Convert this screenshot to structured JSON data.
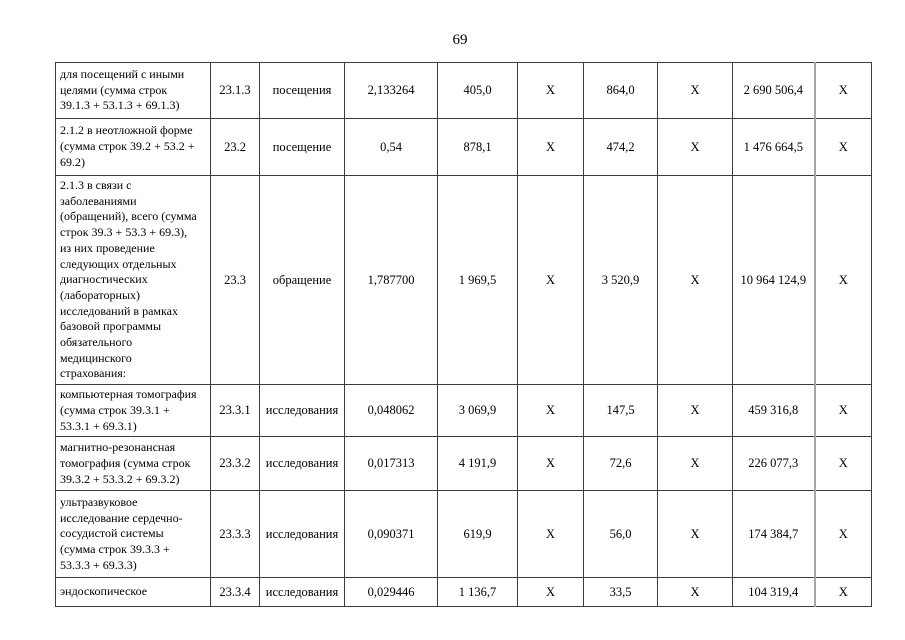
{
  "page": {
    "number": "69"
  },
  "table": {
    "cell_names": [
      "indicator-name-cell",
      "line-code-cell",
      "unit-cell",
      "volume-per-capita-cell",
      "cost-per-unit-cell",
      "x-cell",
      "cost-per-capita-cell",
      "x-cell",
      "total-cost-cell",
      "x-cell"
    ],
    "rows": [
      {
        "cells": [
          "для посещений с иными\nцелями (сумма строк\n39.1.3 + 53.1.3 + 69.1.3)",
          "23.1.3",
          "посещения",
          "2,133264",
          "405,0",
          "X",
          "864,0",
          "X",
          "2 690 506,4",
          "X"
        ]
      },
      {
        "cells": [
          "2.1.2 в неотложной форме\n(сумма строк 39.2 + 53.2 +\n69.2)",
          "23.2",
          "посещение",
          "0,54",
          "878,1",
          "X",
          "474,2",
          "X",
          "1 476 664,5",
          "X"
        ]
      },
      {
        "cells": [
          "2.1.3 в связи с\nзаболеваниями\n(обращений), всего (сумма\nстрок 39.3 + 53.3 + 69.3),\nиз них проведение\nследующих отдельных\nдиагностических\n(лабораторных)\nисследований в рамках\nбазовой программы\nобязательного\nмедицинского\nстрахования:",
          "23.3",
          "обращение",
          "1,787700",
          "1 969,5",
          "X",
          "3 520,9",
          "X",
          "10 964 124,9",
          "X"
        ]
      },
      {
        "cells": [
          "компьютерная томография\n(сумма строк 39.3.1 +\n53.3.1 + 69.3.1)",
          "23.3.1",
          "исследования",
          "0,048062",
          "3 069,9",
          "X",
          "147,5",
          "X",
          "459 316,8",
          "X"
        ]
      },
      {
        "cells": [
          "магнитно-резонансная\nтомография (сумма строк\n39.3.2 + 53.3.2 + 69.3.2)",
          "23.3.2",
          "исследования",
          "0,017313",
          "4 191,9",
          "X",
          "72,6",
          "X",
          "226 077,3",
          "X"
        ]
      },
      {
        "cells": [
          "ультразвуковое\nисследование сердечно-\nсосудистой системы\n(сумма строк 39.3.3 +\n53.3.3 + 69.3.3)",
          "23.3.3",
          "исследования",
          "0,090371",
          "619,9",
          "X",
          "56,0",
          "X",
          "174 384,7",
          "X"
        ]
      },
      {
        "cells": [
          "эндоскопическое",
          "23.3.4",
          "исследования",
          "0,029446",
          "1 136,7",
          "X",
          "33,5",
          "X",
          "104 319,4",
          "X"
        ]
      }
    ]
  }
}
